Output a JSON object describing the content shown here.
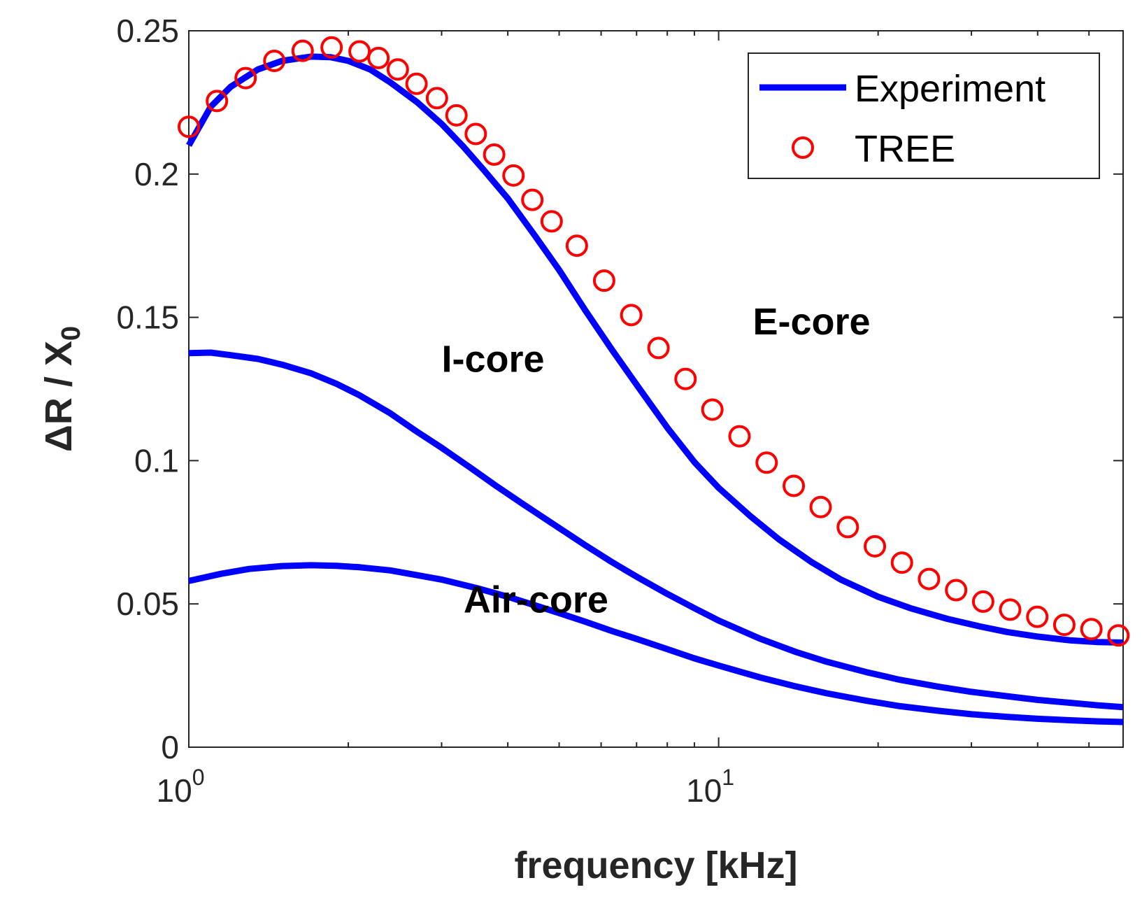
{
  "chart_data": {
    "type": "line",
    "xscale": "log",
    "xlabel": "frequency [kHz]",
    "ylabel_main": "ΔR / X",
    "ylabel_sub": "0",
    "xlim": [
      1,
      58
    ],
    "ylim": [
      0,
      0.25
    ],
    "yticks": [
      {
        "value": 0,
        "label": "0"
      },
      {
        "value": 0.05,
        "label": "0.05"
      },
      {
        "value": 0.1,
        "label": "0.1"
      },
      {
        "value": 0.15,
        "label": "0.15"
      },
      {
        "value": 0.2,
        "label": "0.2"
      },
      {
        "value": 0.25,
        "label": "0.25"
      }
    ],
    "xticks": [
      {
        "value": 1,
        "base": "10",
        "exp": "0"
      },
      {
        "value": 10,
        "base": "10",
        "exp": "1"
      }
    ],
    "x_minor_ticks": [
      2,
      3,
      4,
      5,
      6,
      7,
      8,
      9,
      20,
      30,
      40,
      50
    ],
    "legend": {
      "position": "top-right",
      "entries": [
        {
          "label": "Experiment",
          "style": "line",
          "color": "#0000FF"
        },
        {
          "label": "TREE",
          "style": "circle",
          "color": "#FF0000"
        }
      ]
    },
    "annotations": [
      {
        "text": "E-core",
        "x": 11.6,
        "y": 0.144
      },
      {
        "text": "I-core",
        "x": 3.0,
        "y": 0.131
      },
      {
        "text": "Air-core",
        "x": 3.3,
        "y": 0.047
      }
    ],
    "series": [
      {
        "name": "E-core (Experiment)",
        "style": "line",
        "color": "#0000FF",
        "x": [
          1.0,
          1.1,
          1.2,
          1.35,
          1.5,
          1.7,
          1.85,
          2.0,
          2.2,
          2.4,
          2.7,
          3.0,
          3.3,
          3.6,
          4.0,
          4.5,
          5.0,
          5.6,
          6.3,
          7.0,
          8.0,
          9.0,
          10.0,
          11.5,
          13.0,
          15.0,
          17.0,
          20.0,
          23.0,
          27.0,
          31.0,
          35.0,
          40.0,
          46.0,
          52.0,
          58.0
        ],
        "values": [
          0.21,
          0.2235,
          0.2305,
          0.2365,
          0.2395,
          0.241,
          0.2408,
          0.2395,
          0.2365,
          0.232,
          0.225,
          0.2175,
          0.2095,
          0.2015,
          0.1915,
          0.1785,
          0.1665,
          0.1525,
          0.1385,
          0.1265,
          0.1115,
          0.0995,
          0.0905,
          0.0805,
          0.0725,
          0.0645,
          0.0585,
          0.0525,
          0.0485,
          0.0448,
          0.0422,
          0.0402,
          0.0386,
          0.0373,
          0.0367,
          0.0365
        ]
      },
      {
        "name": "E-core (TREE)",
        "style": "circle",
        "color": "#FF0000",
        "x": [
          1.0,
          1.13,
          1.28,
          1.45,
          1.64,
          1.86,
          2.1,
          2.28,
          2.48,
          2.69,
          2.94,
          3.2,
          3.48,
          3.77,
          4.1,
          4.45,
          4.84,
          5.4,
          6.08,
          6.84,
          7.7,
          8.66,
          9.73,
          10.95,
          12.32,
          13.86,
          15.58,
          17.53,
          19.72,
          22.18,
          24.95,
          28.07,
          31.57,
          35.5,
          39.94,
          44.92,
          50.53,
          56.83
        ],
        "values": [
          0.2165,
          0.2255,
          0.2335,
          0.2395,
          0.243,
          0.2442,
          0.2428,
          0.2405,
          0.2365,
          0.2315,
          0.2265,
          0.2205,
          0.214,
          0.2068,
          0.1995,
          0.191,
          0.1835,
          0.175,
          0.1628,
          0.1508,
          0.1393,
          0.1285,
          0.1178,
          0.1085,
          0.0993,
          0.0912,
          0.0838,
          0.0768,
          0.0701,
          0.0644,
          0.0587,
          0.0548,
          0.0508,
          0.048,
          0.0455,
          0.0427,
          0.0412,
          0.039
        ]
      },
      {
        "name": "I-core",
        "style": "line",
        "color": "#0000FF",
        "x": [
          1.0,
          1.1,
          1.2,
          1.35,
          1.5,
          1.7,
          1.9,
          2.1,
          2.4,
          2.7,
          3.0,
          3.4,
          3.8,
          4.3,
          5.0,
          5.6,
          6.3,
          7.0,
          8.0,
          9.0,
          10.0,
          12.0,
          14.0,
          16.0,
          19.0,
          22.0,
          26.0,
          30.0,
          35.0,
          40.0,
          46.0,
          52.0,
          58.0
        ],
        "values": [
          0.1375,
          0.1377,
          0.1368,
          0.1355,
          0.1335,
          0.1305,
          0.1268,
          0.1228,
          0.1165,
          0.11,
          0.1045,
          0.0975,
          0.0912,
          0.0845,
          0.0765,
          0.0705,
          0.0645,
          0.0595,
          0.0535,
          0.0485,
          0.0442,
          0.0378,
          0.0332,
          0.0298,
          0.0262,
          0.0235,
          0.0211,
          0.0193,
          0.0178,
          0.0165,
          0.0155,
          0.0146,
          0.014
        ]
      },
      {
        "name": "Air-core",
        "style": "line",
        "color": "#0000FF",
        "x": [
          1.0,
          1.15,
          1.3,
          1.5,
          1.7,
          1.9,
          2.1,
          2.4,
          2.7,
          3.0,
          3.5,
          4.0,
          4.5,
          5.0,
          5.6,
          6.3,
          7.0,
          8.0,
          9.0,
          10.0,
          12.0,
          14.0,
          16.0,
          19.0,
          22.0,
          26.0,
          30.0,
          35.0,
          40.0,
          46.0,
          52.0,
          58.0
        ],
        "values": [
          0.058,
          0.0605,
          0.0622,
          0.0632,
          0.0635,
          0.0633,
          0.0628,
          0.0617,
          0.06,
          0.0585,
          0.0555,
          0.0525,
          0.0495,
          0.0468,
          0.0438,
          0.0405,
          0.0378,
          0.0342,
          0.031,
          0.0285,
          0.0243,
          0.0212,
          0.0188,
          0.0162,
          0.0143,
          0.0127,
          0.0115,
          0.0106,
          0.0099,
          0.0094,
          0.009,
          0.0088
        ]
      }
    ]
  }
}
